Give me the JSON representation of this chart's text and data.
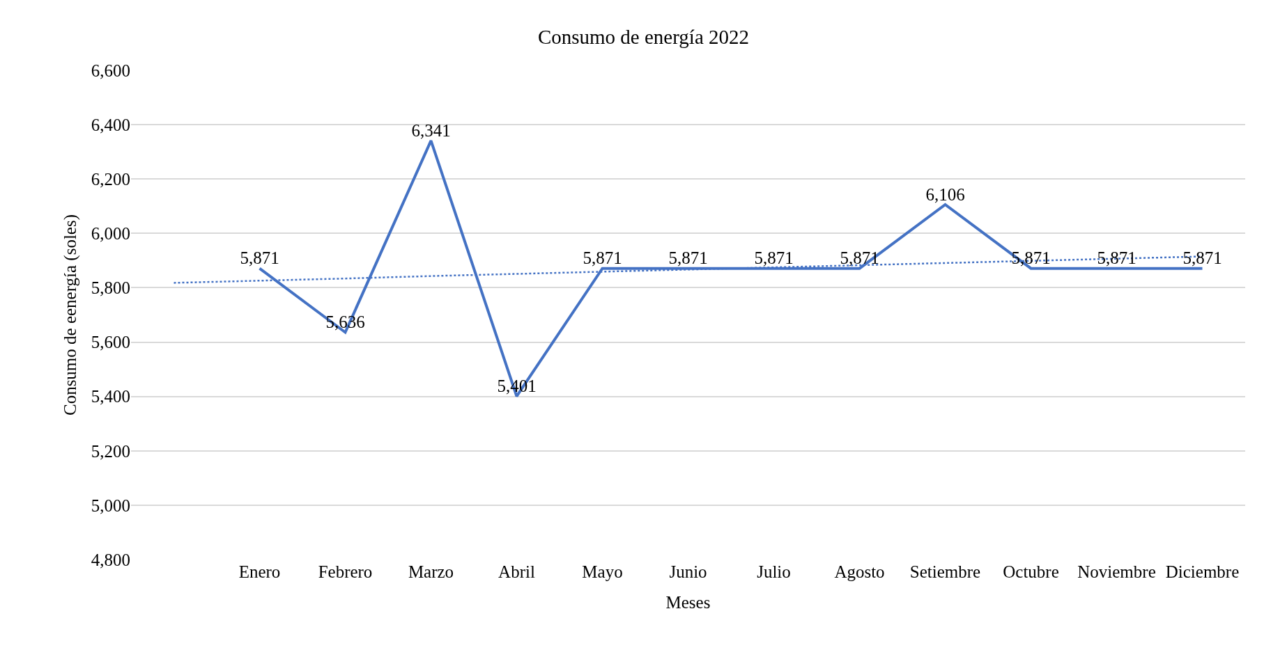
{
  "chart_data": {
    "type": "line",
    "title": "Consumo de energía 2022",
    "xlabel": "Meses",
    "ylabel": "Consumo de eenergía (soles)",
    "categories": [
      null,
      "Enero",
      "Febrero",
      "Marzo",
      "Abril",
      "Mayo",
      "Junio",
      "Julio",
      "Agosto",
      "Setiembre",
      "Octubre",
      "Noviembre",
      "Diciembre"
    ],
    "series": [
      {
        "color": "#4472c4",
        "values": [
          null,
          5871,
          5636,
          6341,
          5401,
          5871,
          5871,
          5871,
          5871,
          6106,
          5871,
          5871,
          5871
        ],
        "value_labels": [
          null,
          "5,871",
          "5,636",
          "6,341",
          "5,401",
          "5,871",
          "5,871",
          "5,871",
          "5,871",
          "6,106",
          "5,871",
          "5,871",
          "5,871"
        ]
      },
      {
        "type": "line",
        "line_style": "dotted",
        "color": "#4472c4",
        "values": [
          5818,
          5826,
          5834,
          5843,
          5851,
          5859,
          5867,
          5875,
          5883,
          5891,
          5899,
          5907,
          5915
        ]
      }
    ],
    "ylim": [
      4800,
      6600
    ],
    "yticks": [
      {
        "value": 4800,
        "label": "4,800"
      },
      {
        "value": 5000,
        "label": "5,000"
      },
      {
        "value": 5200,
        "label": "5,200"
      },
      {
        "value": 5400,
        "label": "5,400"
      },
      {
        "value": 5600,
        "label": "5,600"
      },
      {
        "value": 5800,
        "label": "5,800"
      },
      {
        "value": 6000,
        "label": "6,000"
      },
      {
        "value": 6200,
        "label": "6,200"
      },
      {
        "value": 6400,
        "label": "6,400"
      },
      {
        "value": 6600,
        "label": "6,600"
      }
    ],
    "grid": "y",
    "marker": "none",
    "line_style": "solid"
  }
}
